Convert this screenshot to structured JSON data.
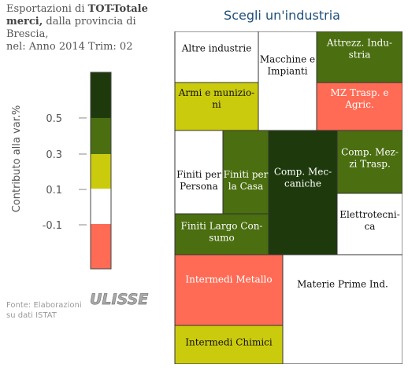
{
  "heading": {
    "line1_prefix": "Esportazioni di ",
    "line1_bold": "TOT-Totale",
    "line2_bold": "merci,",
    "line2_rest": " dalla provincia di",
    "line3": "Brescia,",
    "line4": "nel: Anno 2014 Trim: 02"
  },
  "selector_title": "Scegli un'industria",
  "source": {
    "line1": "Fonte: Elaborazioni",
    "line2": "su dati ISTAT"
  },
  "logo_text": "ULISSE",
  "chart_data": {
    "type": "treemap",
    "title": "",
    "color_scale": {
      "ylabel": "Contributo alla var.%",
      "ticks": [
        "0.5",
        "0.3",
        "0.1",
        "-0.1"
      ],
      "bands": [
        {
          "color": "#1e3a0c"
        },
        {
          "color": "#4a6e10"
        },
        {
          "color": "#cbcb0e"
        },
        {
          "color": "#ffffff"
        },
        {
          "color": "#ff6b55"
        }
      ]
    },
    "industries": [
      {
        "label": "Altre industrie",
        "color": "#ffffff"
      },
      {
        "label": "Macchine e Impianti",
        "color": "#ffffff"
      },
      {
        "label": "Attrezz. Industria",
        "color": "#4a6e10"
      },
      {
        "label": "Armi e munizioni",
        "color": "#cbcb0e"
      },
      {
        "label": "MZ Trasp. e Agric.",
        "color": "#ff6b55"
      },
      {
        "label": "Finiti per Persona",
        "color": "#ffffff"
      },
      {
        "label": "Finiti per la Casa",
        "color": "#4a6e10"
      },
      {
        "label": "Comp. Meccaniche",
        "color": "#1e3a0c"
      },
      {
        "label": "Comp. Mezzi Trasp.",
        "color": "#4a6e10"
      },
      {
        "label": "Elettrotecnica",
        "color": "#ffffff"
      },
      {
        "label": "Finiti Largo Consumo",
        "color": "#4a6e10"
      },
      {
        "label": "Intermedi Metallo",
        "color": "#ff6b55"
      },
      {
        "label": "Materie Prime Ind.",
        "color": "#ffffff"
      },
      {
        "label": "Intermedi Chimici",
        "color": "#cbcb0e"
      }
    ]
  }
}
